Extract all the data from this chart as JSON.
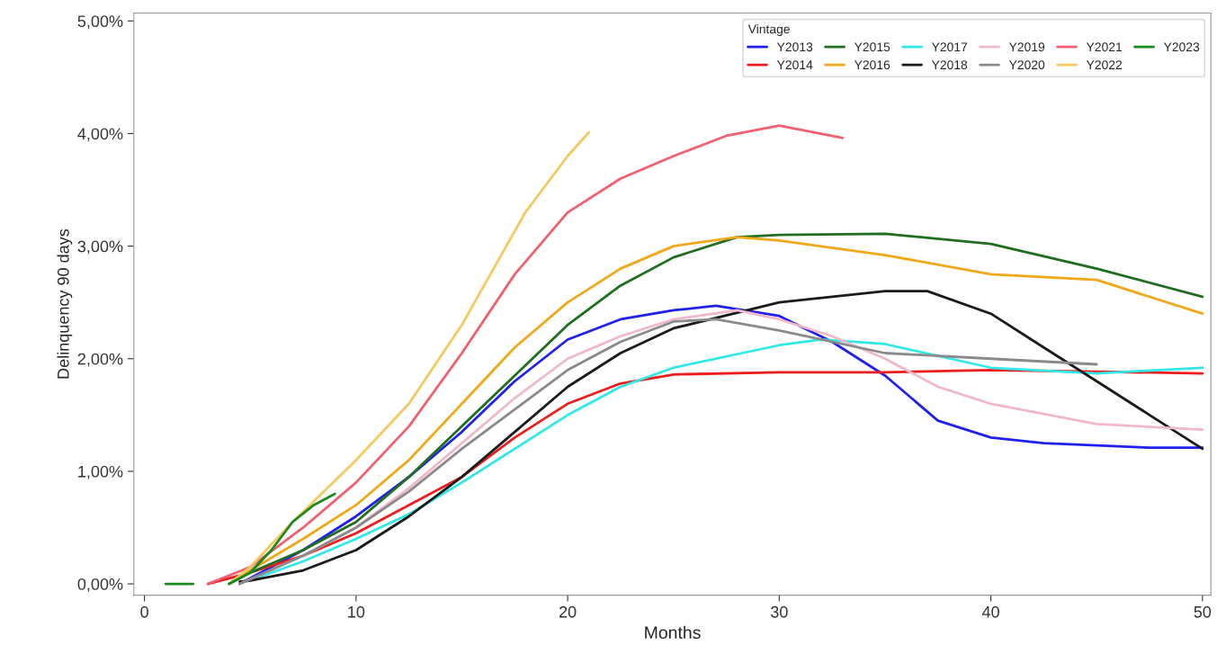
{
  "chart_data": {
    "type": "line",
    "xlabel": "Months",
    "ylabel": "Delinquency 90 days",
    "legend_title": "Vintage",
    "legend": "top right",
    "grid": false,
    "marker": "none",
    "line_style": "solid",
    "xlim": [
      -0.5,
      50.4
    ],
    "xticks": [
      0,
      10,
      20,
      30,
      40,
      50
    ],
    "ylim": [
      -0.1,
      5.07
    ],
    "yticks": [
      {
        "value": 0,
        "label": "0,00%"
      },
      {
        "value": 1,
        "label": "1,00%"
      },
      {
        "value": 2,
        "label": "2,00%"
      },
      {
        "value": 3,
        "label": "3,00%"
      },
      {
        "value": 4,
        "label": "4,00%"
      },
      {
        "value": 5,
        "label": "5,00%"
      }
    ],
    "series": [
      {
        "name": "Y2013",
        "color": "#2020ee",
        "x": [
          4.5,
          5,
          7.5,
          10,
          12.5,
          15,
          17.5,
          20,
          22.5,
          25,
          27,
          30,
          32.5,
          35,
          37.5,
          40,
          42.5,
          45,
          47.5,
          50
        ],
        "values": [
          0,
          0.05,
          0.3,
          0.6,
          0.95,
          1.35,
          1.8,
          2.17,
          2.35,
          2.43,
          2.47,
          2.38,
          2.15,
          1.85,
          1.45,
          1.3,
          1.25,
          1.23,
          1.21,
          1.21
        ]
      },
      {
        "name": "Y2014",
        "color": "#ee1c1c",
        "x": [
          3,
          5,
          7.5,
          10,
          12.5,
          15,
          17.5,
          20,
          22.5,
          25,
          30,
          35,
          40,
          50
        ],
        "values": [
          0,
          0.1,
          0.25,
          0.45,
          0.7,
          0.95,
          1.3,
          1.6,
          1.78,
          1.86,
          1.88,
          1.88,
          1.9,
          1.87
        ]
      },
      {
        "name": "Y2015",
        "color": "#1e6e1e",
        "x": [
          4,
          5,
          7.5,
          10,
          12.5,
          15,
          17.5,
          20,
          22.5,
          25,
          28,
          30,
          35,
          40,
          45,
          50
        ],
        "values": [
          0,
          0.1,
          0.3,
          0.55,
          0.95,
          1.4,
          1.85,
          2.3,
          2.65,
          2.9,
          3.08,
          3.1,
          3.11,
          3.02,
          2.8,
          2.55
        ]
      },
      {
        "name": "Y2016",
        "color": "#f0a818",
        "x": [
          4,
          5,
          7.5,
          10,
          12.5,
          15,
          17.5,
          20,
          22.5,
          25,
          28,
          30,
          35,
          40,
          45,
          50
        ],
        "values": [
          0,
          0.12,
          0.4,
          0.7,
          1.1,
          1.6,
          2.1,
          2.5,
          2.8,
          3.0,
          3.08,
          3.05,
          2.92,
          2.75,
          2.7,
          2.4
        ]
      },
      {
        "name": "Y2017",
        "color": "#30e8e8",
        "x": [
          4.5,
          7.5,
          10,
          12.5,
          15,
          17.5,
          20,
          22.5,
          25,
          30,
          32,
          35,
          40,
          45,
          50
        ],
        "values": [
          0,
          0.2,
          0.4,
          0.62,
          0.9,
          1.2,
          1.5,
          1.75,
          1.92,
          2.12,
          2.17,
          2.13,
          1.92,
          1.87,
          1.92
        ]
      },
      {
        "name": "Y2018",
        "color": "#1a1a1a",
        "x": [
          4.5,
          5,
          7.5,
          10,
          12.5,
          15,
          17.5,
          20,
          22.5,
          25,
          30,
          35,
          37,
          40,
          42.5,
          45,
          47.5,
          50
        ],
        "values": [
          0.02,
          0.03,
          0.12,
          0.3,
          0.6,
          0.95,
          1.35,
          1.75,
          2.05,
          2.27,
          2.5,
          2.6,
          2.6,
          2.4,
          2.1,
          1.8,
          1.5,
          1.2
        ]
      },
      {
        "name": "Y2019",
        "color": "#f0b8c8",
        "x": [
          4.5,
          7.5,
          10,
          12.5,
          15,
          17.5,
          20,
          22.5,
          25,
          28,
          30,
          32.5,
          35,
          37.5,
          40,
          45,
          50
        ],
        "values": [
          0,
          0.25,
          0.5,
          0.85,
          1.25,
          1.65,
          2.0,
          2.2,
          2.35,
          2.43,
          2.35,
          2.2,
          2.0,
          1.75,
          1.6,
          1.42,
          1.37
        ]
      },
      {
        "name": "Y2020",
        "color": "#8a8a8a",
        "x": [
          4.5,
          7.5,
          10,
          12.5,
          15,
          17.5,
          20,
          22.5,
          25,
          27,
          30,
          35,
          40,
          45
        ],
        "values": [
          0,
          0.25,
          0.5,
          0.82,
          1.2,
          1.55,
          1.9,
          2.15,
          2.33,
          2.35,
          2.25,
          2.05,
          2.0,
          1.95
        ]
      },
      {
        "name": "Y2021",
        "color": "#f06070",
        "x": [
          3,
          5,
          7.5,
          10,
          12.5,
          15,
          17.5,
          20,
          22.5,
          25,
          27.5,
          30,
          33
        ],
        "values": [
          0,
          0.15,
          0.5,
          0.9,
          1.4,
          2.05,
          2.75,
          3.3,
          3.6,
          3.8,
          3.98,
          4.07,
          3.96
        ]
      },
      {
        "name": "Y2022",
        "color": "#f5c860",
        "x": [
          4,
          5,
          7,
          10,
          12.5,
          15,
          16.5,
          18,
          20,
          21
        ],
        "values": [
          0,
          0.15,
          0.55,
          1.1,
          1.6,
          2.3,
          2.8,
          3.3,
          3.8,
          4.01
        ]
      },
      {
        "name": "Y2023",
        "color": "#1a8a1a",
        "x": [
          1,
          2.3,
          3,
          4,
          5,
          6,
          7,
          8,
          9
        ],
        "values": [
          0,
          0,
          null,
          0,
          0.1,
          0.3,
          0.55,
          0.7,
          0.8
        ]
      }
    ]
  }
}
